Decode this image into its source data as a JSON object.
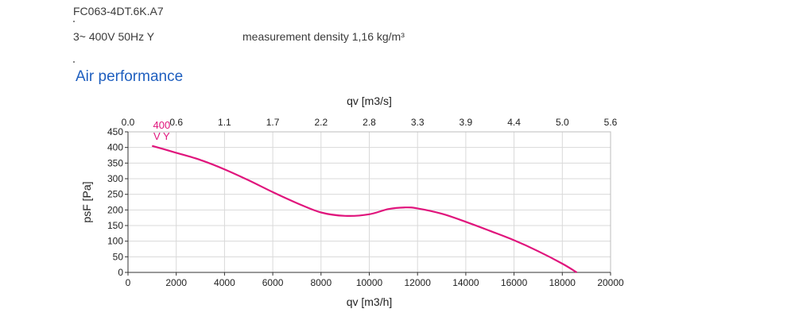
{
  "header": {
    "model": "FC063-4DT.6K.A7",
    "supply": "3~ 400V 50Hz Y",
    "density": "measurement density 1,16 kg/m³"
  },
  "section_title": "Air performance",
  "chart_data": {
    "type": "line",
    "title": "",
    "xlabel": "qv [m3/h]",
    "ylabel": "psF [Pa]",
    "x2label": "qv [m3/s]",
    "xlim": [
      0,
      20000
    ],
    "ylim": [
      0,
      450
    ],
    "x2lim": [
      0,
      5.56
    ],
    "grid": true,
    "x_ticks": [
      "0",
      "2000",
      "4000",
      "6000",
      "8000",
      "10000",
      "12000",
      "14000",
      "16000",
      "18000",
      "20000"
    ],
    "y_ticks": [
      "0",
      "50",
      "100",
      "150",
      "200",
      "250",
      "300",
      "350",
      "400",
      "450"
    ],
    "x2_ticks": [
      "0.0",
      "0.6",
      "1.1",
      "1.7",
      "2.2",
      "2.8",
      "3.3",
      "3.9",
      "4.4",
      "5.0",
      "5.6"
    ],
    "series": [
      {
        "name": "400 V Y",
        "label_lines": [
          "400",
          "V Y"
        ],
        "color": "#e0147c",
        "x": [
          1000,
          2000,
          3000,
          4000,
          5000,
          6000,
          7000,
          8000,
          9000,
          10000,
          10800,
          11500,
          12000,
          13000,
          14000,
          15000,
          16000,
          17000,
          18000,
          18600
        ],
        "y": [
          405,
          383,
          360,
          330,
          295,
          257,
          222,
          192,
          181,
          186,
          203,
          208,
          205,
          188,
          162,
          133,
          103,
          68,
          28,
          0
        ]
      }
    ]
  }
}
